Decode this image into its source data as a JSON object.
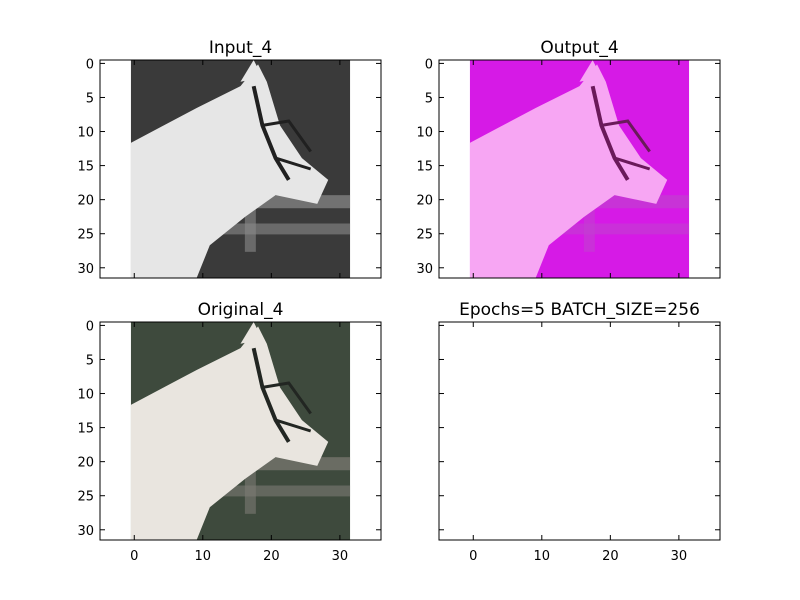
{
  "chart_data": [
    {
      "type": "image",
      "title": "Input_4",
      "xlim": [
        -5,
        36
      ],
      "ylim": [
        31.5,
        -0.5
      ],
      "xticks": [
        0,
        10,
        20,
        30
      ],
      "yticks": [
        0,
        5,
        10,
        15,
        20,
        25,
        30
      ],
      "show_xtick_labels": false,
      "show_ytick_labels": true,
      "image_extent": [
        -0.5,
        31.5,
        31.5,
        -0.5
      ],
      "colormap": "grayscale",
      "content": "horse-head"
    },
    {
      "type": "image",
      "title": "Output_4",
      "xlim": [
        -5,
        36
      ],
      "ylim": [
        31.5,
        -0.5
      ],
      "xticks": [
        0,
        10,
        20,
        30
      ],
      "yticks": [
        0,
        5,
        10,
        15,
        20,
        25,
        30
      ],
      "show_xtick_labels": false,
      "show_ytick_labels": true,
      "image_extent": [
        -0.5,
        31.5,
        31.5,
        -0.5
      ],
      "colormap": "magenta-tint",
      "content": "horse-head"
    },
    {
      "type": "image",
      "title": "Original_4",
      "xlim": [
        -5,
        36
      ],
      "ylim": [
        31.5,
        -0.5
      ],
      "xticks": [
        0,
        10,
        20,
        30
      ],
      "yticks": [
        0,
        5,
        10,
        15,
        20,
        25,
        30
      ],
      "show_xtick_labels": true,
      "show_ytick_labels": true,
      "image_extent": [
        -0.5,
        31.5,
        31.5,
        -0.5
      ],
      "colormap": "natural",
      "content": "horse-head"
    },
    {
      "type": "empty",
      "title": "Epochs=5 BATCH_SIZE=256",
      "xlim": [
        -5,
        36
      ],
      "ylim": [
        31.5,
        -0.5
      ],
      "xticks": [
        0,
        10,
        20,
        30
      ],
      "yticks": [
        0,
        5,
        10,
        15,
        20,
        25,
        30
      ],
      "show_xtick_labels": true,
      "show_ytick_labels": false
    }
  ],
  "colors": {
    "input_bg": "#3a3a3a",
    "input_fg": "#e6e6e6",
    "output_bg": "#d61ae6",
    "output_fg": "#f7a6f3",
    "original_bg": "#3e4a3d",
    "original_fg": "#e9e5df"
  }
}
